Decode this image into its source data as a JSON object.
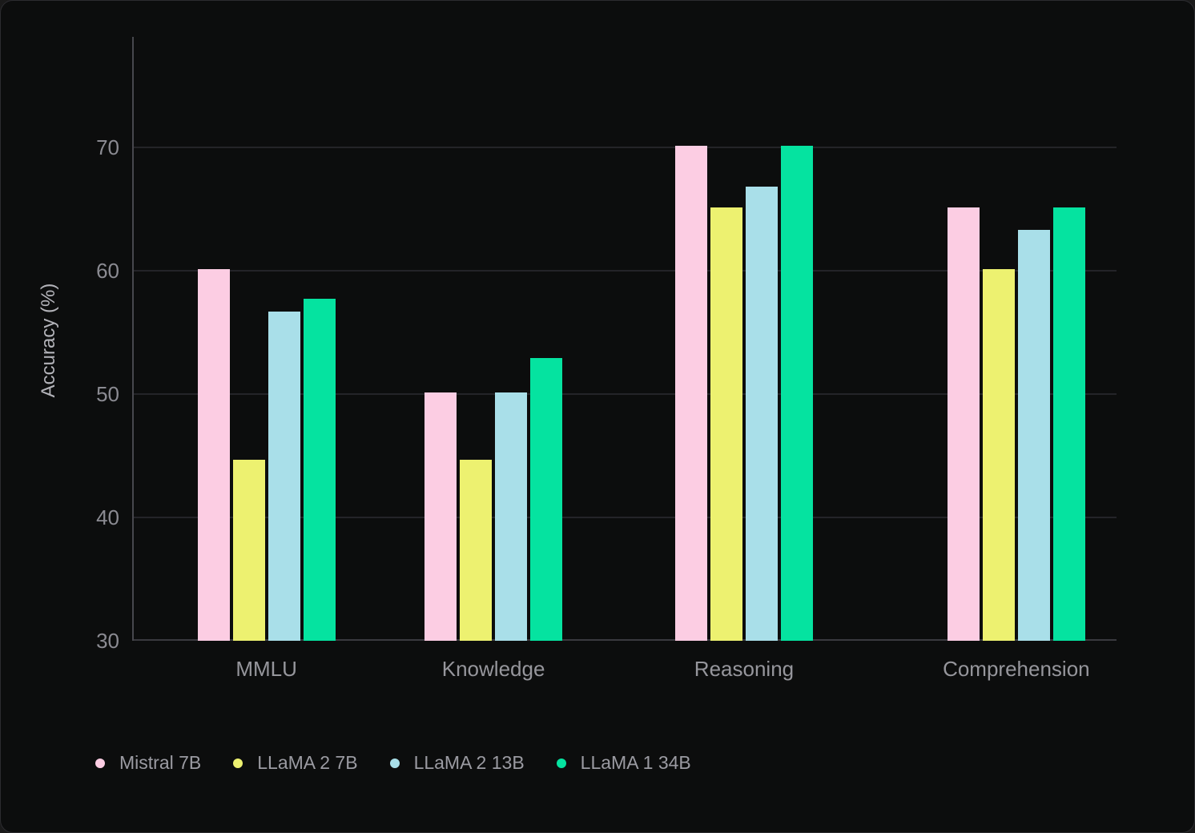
{
  "chart_data": {
    "type": "bar",
    "title": "",
    "xlabel": "",
    "ylabel": "Accuracy (%)",
    "categories": [
      "MMLU",
      "Knowledge",
      "Reasoning",
      "Comprehension"
    ],
    "series": [
      {
        "name": "Mistral 7B",
        "color": "#fccde3",
        "values": [
          60.1,
          50.1,
          70.1,
          65.1
        ]
      },
      {
        "name": "LLaMA 2 7B",
        "color": "#edf170",
        "values": [
          44.7,
          44.7,
          65.1,
          60.1
        ]
      },
      {
        "name": "LLaMA 2 13B",
        "color": "#a9dfe9",
        "values": [
          56.7,
          50.1,
          66.8,
          63.3
        ]
      },
      {
        "name": "LLaMA 1 34B",
        "color": "#05e3a0",
        "values": [
          57.7,
          52.9,
          70.1,
          65.1
        ]
      }
    ],
    "y_ticks": [
      30,
      40,
      50,
      60,
      70
    ],
    "ylim": [
      30,
      79
    ],
    "grid": true,
    "legend_position": "bottom-left",
    "layout": {
      "group_center_fractions": [
        0.135,
        0.366,
        0.621,
        0.898
      ]
    },
    "theme": {
      "background": "#0c0d0d",
      "border": "#2c2c30",
      "gridline": "#242428",
      "axis_line": "#47474d",
      "baseline": "#3a3a3f",
      "tick_text": "#8b8b92",
      "category_text": "#96969c",
      "legend_text": "#9b9ba2",
      "axis_title_text": "#b3b3b9"
    }
  }
}
